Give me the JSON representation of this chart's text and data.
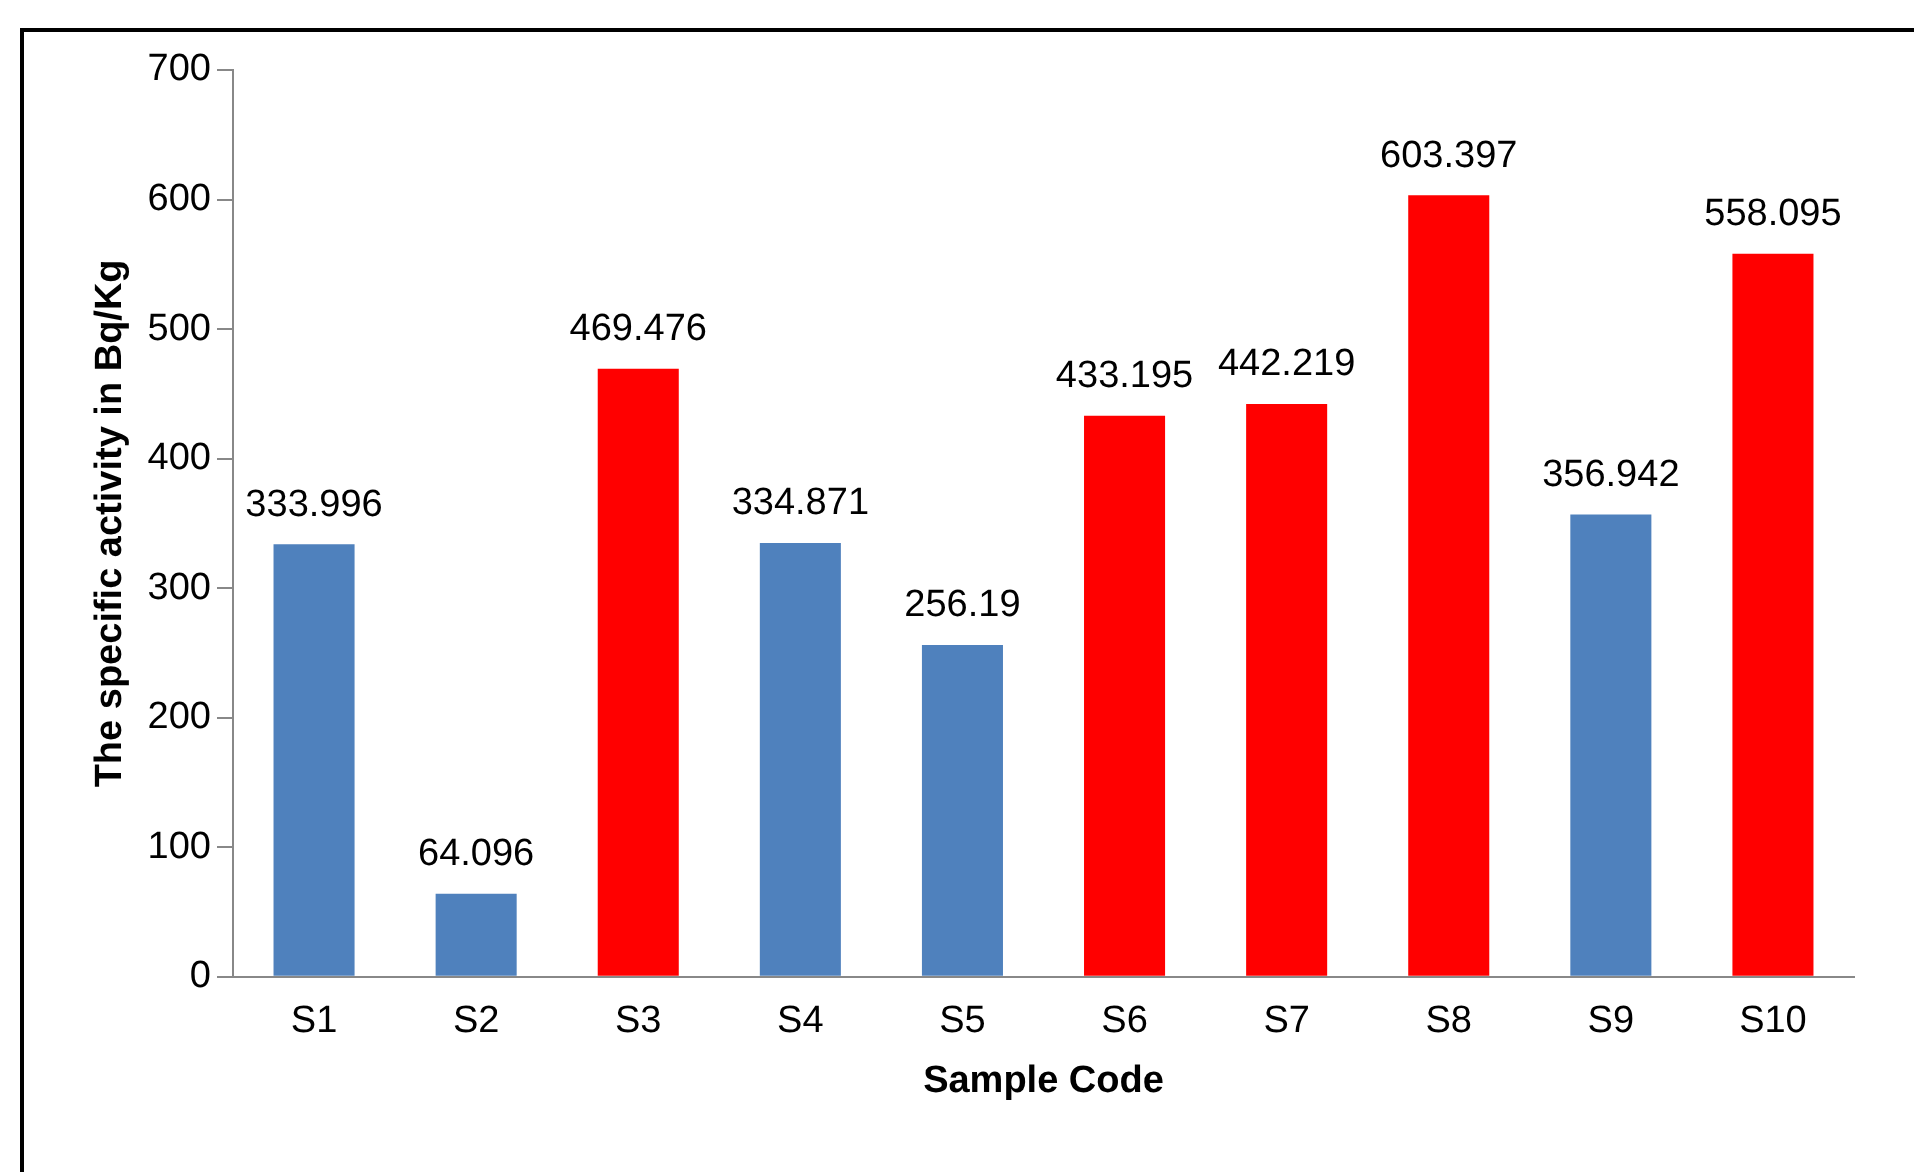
{
  "chart_data": {
    "type": "bar",
    "xlabel": "Sample Code",
    "ylabel": "The specific activity in Bq/Kg",
    "categories": [
      "S1",
      "S2",
      "S3",
      "S4",
      "S5",
      "S6",
      "S7",
      "S8",
      "S9",
      "S10"
    ],
    "values": [
      333.996,
      64.096,
      469.476,
      334.871,
      256.19,
      433.195,
      442.219,
      603.397,
      356.942,
      558.095
    ],
    "colors": [
      "#4f81bd",
      "#4f81bd",
      "#ff0000",
      "#4f81bd",
      "#4f81bd",
      "#ff0000",
      "#ff0000",
      "#ff0000",
      "#4f81bd",
      "#ff0000"
    ],
    "ylim": [
      0,
      700
    ],
    "yticks": [
      0,
      100,
      200,
      300,
      400,
      500,
      600,
      700
    ],
    "grid": false,
    "data_labels": true
  }
}
